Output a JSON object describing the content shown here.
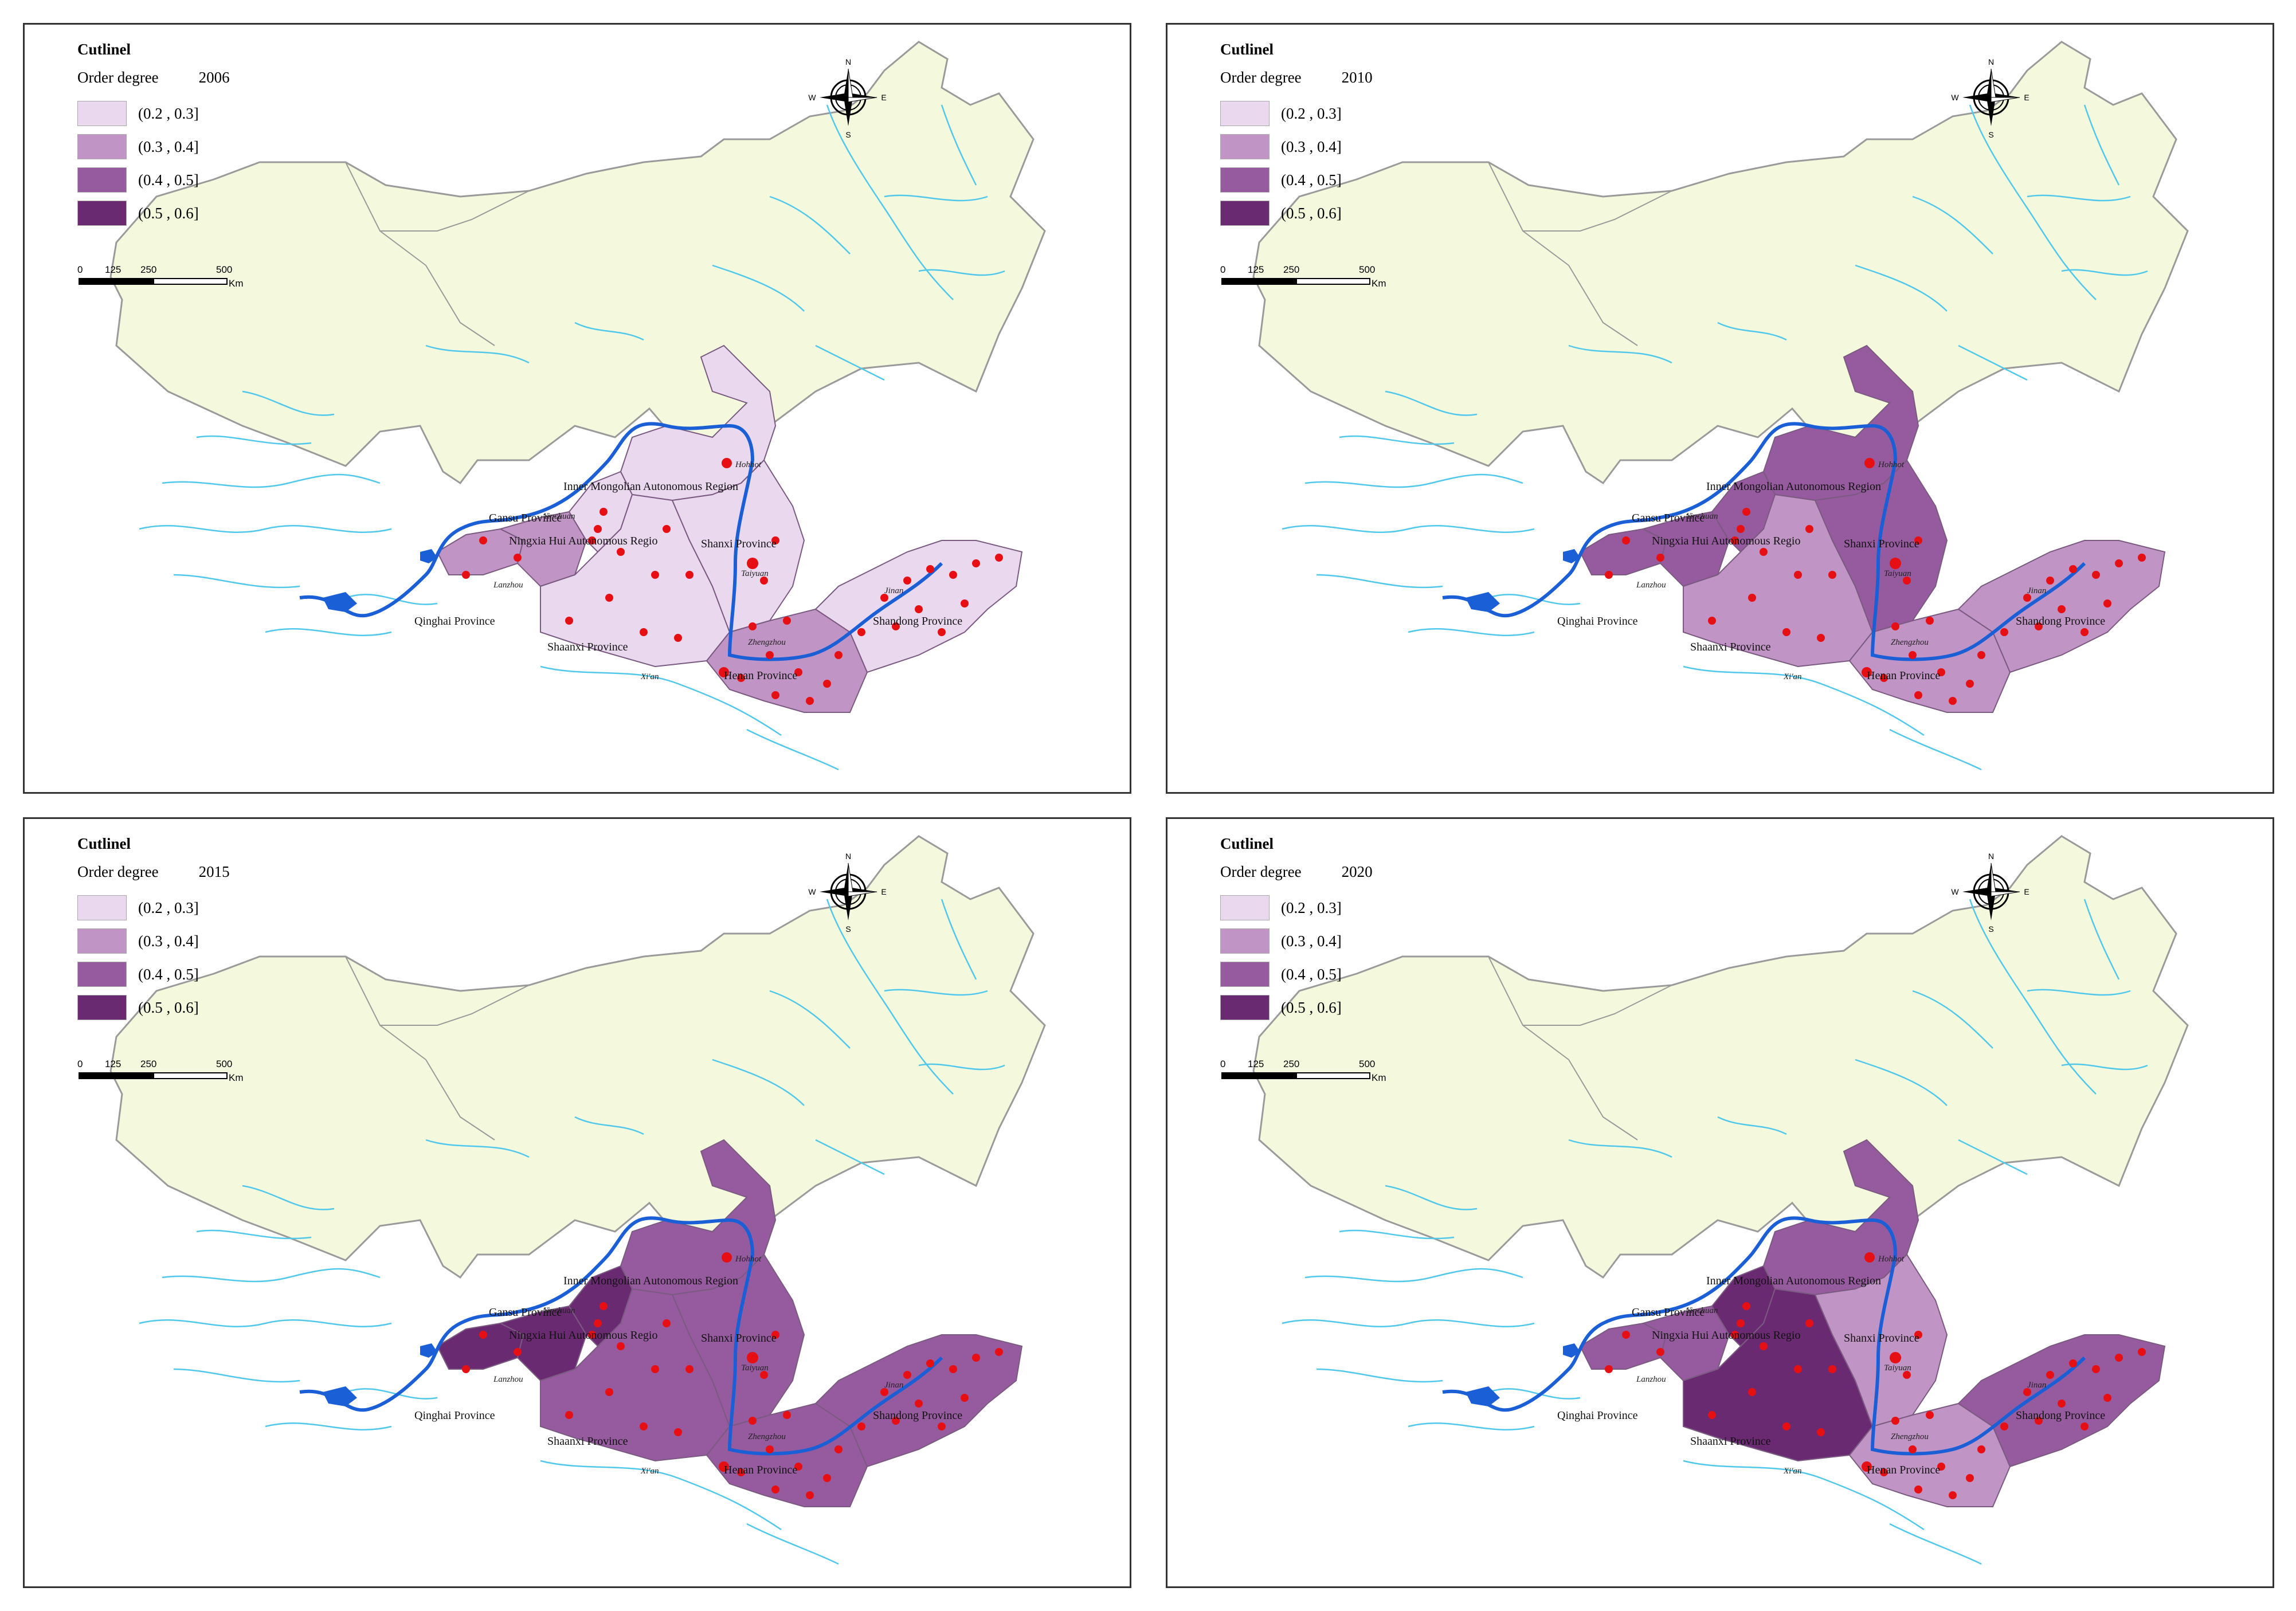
{
  "legend": {
    "title": "Cutlinel",
    "subtitle": "Order degree",
    "classes": [
      {
        "label": "(0.2 , 0.3]",
        "color": "#ead8ef"
      },
      {
        "label": "(0.3 , 0.4]",
        "color": "#c094c4"
      },
      {
        "label": "(0.4 , 0.5]",
        "color": "#965b9f"
      },
      {
        "label": "(0.5 , 0.6]",
        "color": "#6a2a72"
      }
    ]
  },
  "scale": {
    "ticks": [
      "0",
      "125",
      "250",
      "500"
    ],
    "unit": "Km"
  },
  "compass": {
    "n": "N",
    "s": "S",
    "e": "E",
    "w": "W"
  },
  "colors": {
    "background_land": "#f4f8dc",
    "river": "#4fc8ec",
    "yellow_river": "#1a5fd6",
    "border": "#999999",
    "city_dot": "#e60f14"
  },
  "provinces": [
    {
      "key": "gansu",
      "label": "Gansu Province"
    },
    {
      "key": "ningxia",
      "label": "Ningxia Hui Autonomous Regio"
    },
    {
      "key": "inner_mongolia",
      "label": "Inner Mongolian Autonomous Region"
    },
    {
      "key": "qinghai",
      "label": "Qinghai Province"
    },
    {
      "key": "shaanxi",
      "label": "Shaanxi Province"
    },
    {
      "key": "shanxi",
      "label": "Shanxi Province"
    },
    {
      "key": "henan",
      "label": "Henan Province"
    },
    {
      "key": "shandong",
      "label": "Shandong Province"
    }
  ],
  "cities": [
    "Hohhot",
    "Yinchuan",
    "Lanzhou",
    "Taiyuan",
    "Xi'an",
    "Jinan",
    "Zhengzhou"
  ],
  "panels": [
    {
      "year": "2006",
      "classes": {
        "qinghai_east": 2,
        "gansu": 2,
        "ningxia": 1,
        "inner_mongolia": 1,
        "shaanxi": 1,
        "shanxi": 1,
        "henan": 2,
        "shandong": 1
      }
    },
    {
      "year": "2010",
      "classes": {
        "qinghai_east": 3,
        "gansu": 3,
        "ningxia": 3,
        "inner_mongolia": 3,
        "shaanxi": 2,
        "shanxi": 3,
        "henan": 2,
        "shandong": 2
      }
    },
    {
      "year": "2015",
      "classes": {
        "qinghai_east": 4,
        "gansu": 4,
        "ningxia": 4,
        "inner_mongolia": 3,
        "shaanxi": 3,
        "shanxi": 3,
        "henan": 3,
        "shandong": 3
      }
    },
    {
      "year": "2020",
      "classes": {
        "qinghai_east": 3,
        "gansu": 3,
        "ningxia": 4,
        "inner_mongolia": 3,
        "shaanxi": 4,
        "shanxi": 2,
        "henan": 2,
        "shandong": 3
      }
    }
  ]
}
